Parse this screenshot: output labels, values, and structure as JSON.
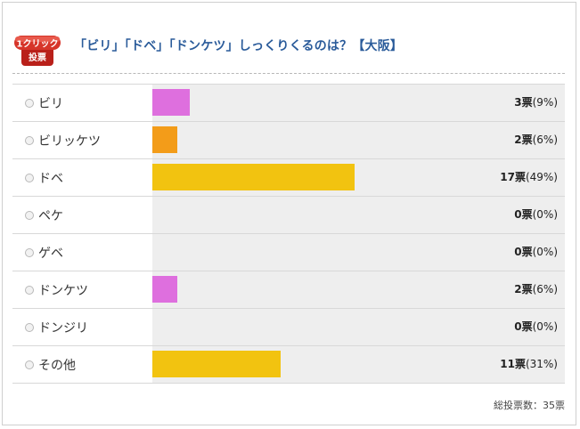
{
  "poll": {
    "badge_line1": "1クリック",
    "badge_line2": "投票",
    "title": "「ビリ」「ドベ」「ドンケツ」しっくりくるのは？【大阪】",
    "rows": [
      {
        "label": "ビリ",
        "count": "3",
        "unit": "票",
        "pct": "(9%)",
        "share": 0.09,
        "color": "#de6fde"
      },
      {
        "label": "ビリッケツ",
        "count": "2",
        "unit": "票",
        "pct": "(6%)",
        "share": 0.06,
        "color": "#f39c19"
      },
      {
        "label": "ドベ",
        "count": "17",
        "unit": "票",
        "pct": "(49%)",
        "share": 0.49,
        "color": "#f2c310"
      },
      {
        "label": "ペケ",
        "count": "0",
        "unit": "票",
        "pct": "(0%)",
        "share": 0,
        "color": "#f2c310"
      },
      {
        "label": "ゲベ",
        "count": "0",
        "unit": "票",
        "pct": "(0%)",
        "share": 0,
        "color": "#f2c310"
      },
      {
        "label": "ドンケツ",
        "count": "2",
        "unit": "票",
        "pct": "(6%)",
        "share": 0.06,
        "color": "#de6fde"
      },
      {
        "label": "ドンジリ",
        "count": "0",
        "unit": "票",
        "pct": "(0%)",
        "share": 0,
        "color": "#f2c310"
      },
      {
        "label": "その他",
        "count": "11",
        "unit": "票",
        "pct": "(31%)",
        "share": 0.31,
        "color": "#f2c310"
      }
    ],
    "total_label": "総投票数：35票"
  },
  "colors": {
    "title": "#2a5b9a",
    "badge": "#c8281e"
  }
}
